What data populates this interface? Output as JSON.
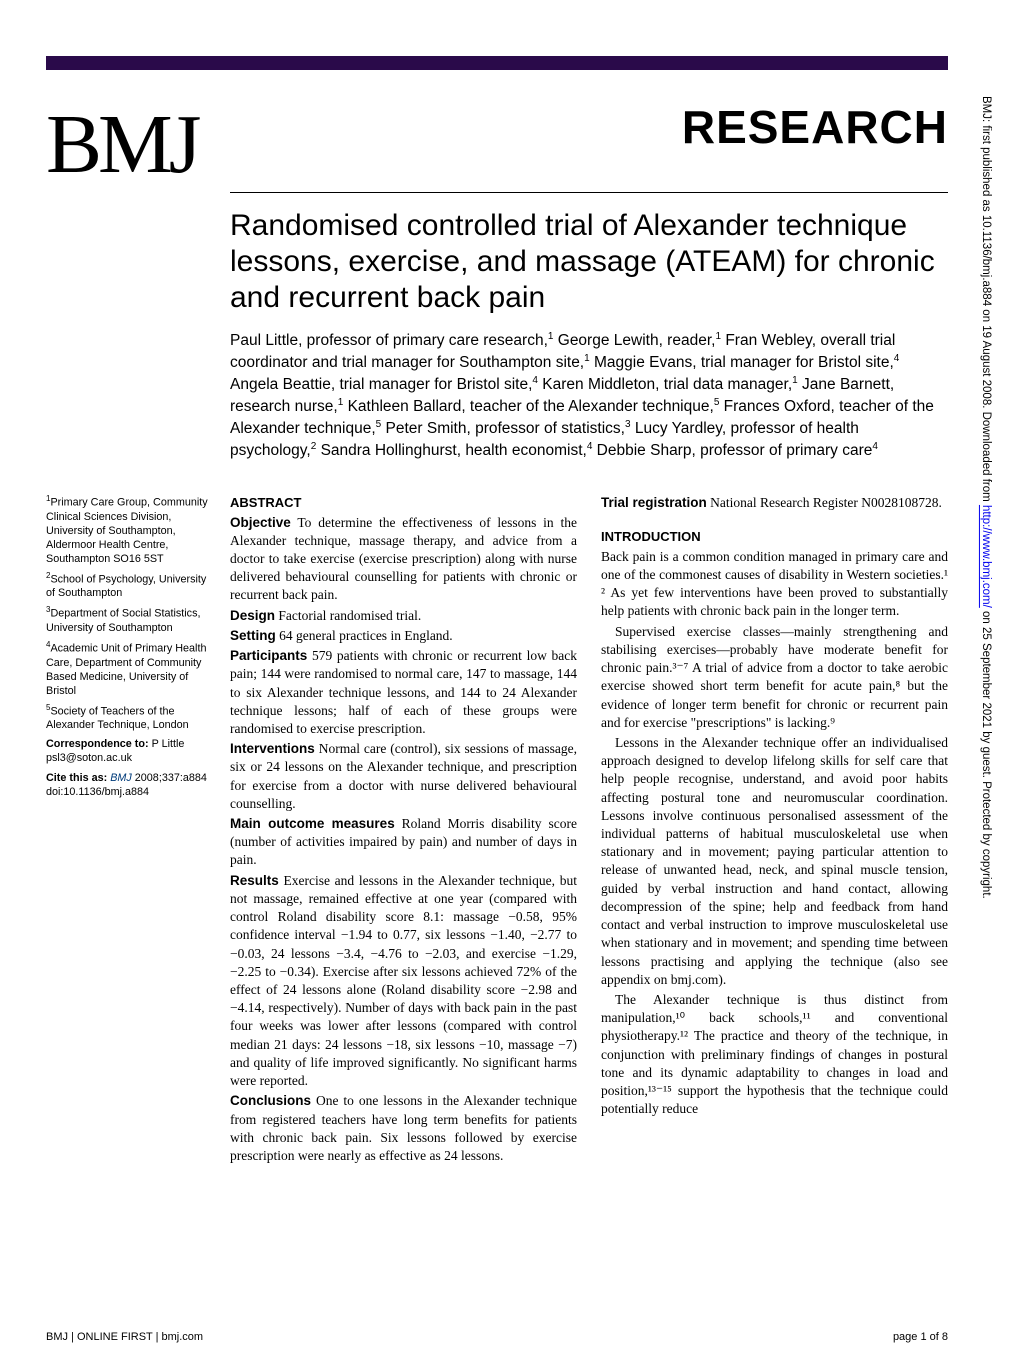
{
  "theme": {
    "top_bar_color": "#2a0a4a",
    "text_color": "#000000",
    "link_color": "#0000ee",
    "cite_color": "#003b7a",
    "background": "#ffffff"
  },
  "logo": "BMJ",
  "section_label": "RESEARCH",
  "side_caption_prefix": "BMJ: first published as 10.1136/bmj.a884 on 19 August 2008. Downloaded from ",
  "side_caption_url": "http://www.bmj.com/",
  "side_caption_suffix": " on 25 September 2021 by guest. Protected by copyright.",
  "title": "Randomised controlled trial of Alexander technique lessons, exercise, and massage (ATEAM) for chronic and recurrent back pain",
  "authors_html": "Paul Little, professor of primary care research,<sup>1</sup> George Lewith, reader,<sup>1</sup> Fran Webley, overall trial coordinator and trial manager for Southampton site,<sup>1</sup> Maggie Evans, trial manager for Bristol site,<sup>4</sup> Angela Beattie, trial manager for Bristol site,<sup>4</sup> Karen Middleton, trial data manager,<sup>1</sup> Jane Barnett, research nurse,<sup>1</sup> Kathleen Ballard, teacher of the Alexander technique,<sup>5</sup> Frances Oxford, teacher of the Alexander technique,<sup>5</sup> Peter Smith, professor of statistics,<sup>3</sup> Lucy Yardley, professor of health psychology,<sup>2</sup> Sandra Hollinghurst, health economist,<sup>4</sup> Debbie Sharp, professor of primary care<sup>4</sup>",
  "affiliations": {
    "a1": "Primary Care Group, Community Clinical Sciences Division, University of Southampton, Aldermoor Health Centre, Southampton SO16 5ST",
    "a2": "School of Psychology, University of Southampton",
    "a3": "Department of Social Statistics, University of Southampton",
    "a4": "Academic Unit of Primary Health Care, Department of Community Based Medicine, University of Bristol",
    "a5": "Society of Teachers of the Alexander Technique, London",
    "corr_label": "Correspondence to:",
    "corr_person": " P Little",
    "corr_email": "psl3@soton.ac.uk",
    "cite_label": "Cite this as: ",
    "cite_journal": "BMJ ",
    "cite_rest": "2008;337:a884",
    "doi": "doi:10.1136/bmj.a884"
  },
  "abstract": {
    "heading": "ABSTRACT",
    "objective_label": "Objective",
    "objective_text": " To determine the effectiveness of lessons in the Alexander technique, massage therapy, and advice from a doctor to take exercise (exercise prescription) along with nurse delivered behavioural counselling for patients with chronic or recurrent back pain.",
    "design_label": "Design",
    "design_text": " Factorial randomised trial.",
    "setting_label": "Setting",
    "setting_text": " 64 general practices in England.",
    "participants_label": "Participants",
    "participants_text": " 579 patients with chronic or recurrent low back pain; 144 were randomised to normal care, 147 to massage, 144 to six Alexander technique lessons, and 144 to 24 Alexander technique lessons; half of each of these groups were randomised to exercise prescription.",
    "interventions_label": "Interventions",
    "interventions_text": " Normal care (control), six sessions of massage, six or 24 lessons on the Alexander technique, and prescription for exercise from a doctor with nurse delivered behavioural counselling.",
    "outcomes_label": "Main outcome measures",
    "outcomes_text": " Roland Morris disability score (number of activities impaired by pain) and number of days in pain.",
    "results_label": "Results",
    "results_text": " Exercise and lessons in the Alexander technique, but not massage, remained effective at one year (compared with control Roland disability score 8.1: massage −0.58, 95% confidence interval −1.94 to 0.77, six lessons −1.40, −2.77 to −0.03, 24 lessons −3.4, −4.76 to −2.03, and exercise −1.29, −2.25 to −0.34). Exercise after six lessons achieved 72% of the effect of 24 lessons alone (Roland disability score −2.98 and −4.14, respectively). Number of days with back pain in the past four weeks was lower after lessons (compared with control median 21 days: 24 lessons −18, six lessons −10, massage −7) and quality of life improved significantly. No significant harms were reported.",
    "conclusions_label": "Conclusions",
    "conclusions_text": " One to one lessons in the Alexander technique from registered teachers have long term benefits for patients with chronic back pain. Six lessons followed by exercise prescription were nearly as effective as 24 lessons."
  },
  "right_col": {
    "trial_reg_label": "Trial registration",
    "trial_reg_text": " National Research Register N0028108728.",
    "intro_heading": "INTRODUCTION",
    "intro_p1": "Back pain is a common condition managed in primary care and one of the commonest causes of disability in Western societies.¹ ² As yet few interventions have been proved to substantially help patients with chronic back pain in the longer term.",
    "intro_p2": "Supervised exercise classes—mainly strengthening and stabilising exercises—probably have moderate benefit for chronic pain.³⁻⁷ A trial of advice from a doctor to take aerobic exercise showed short term benefit for acute pain,⁸ but the evidence of longer term benefit for chronic or recurrent pain and for exercise \"prescriptions\" is lacking.⁹",
    "intro_p3": "Lessons in the Alexander technique offer an individualised approach designed to develop lifelong skills for self care that help people recognise, understand, and avoid poor habits affecting postural tone and neuromuscular coordination. Lessons involve continuous personalised assessment of the individual patterns of habitual musculoskeletal use when stationary and in movement; paying particular attention to release of unwanted head, neck, and spinal muscle tension, guided by verbal instruction and hand contact, allowing decompression of the spine; help and feedback from hand contact and verbal instruction to improve musculoskeletal use when stationary and in movement; and spending time between lessons practising and applying the technique (also see appendix on bmj.com).",
    "intro_p4": "The Alexander technique is thus distinct from manipulation,¹⁰ back schools,¹¹ and conventional physiotherapy.¹² The practice and theory of the technique, in conjunction with preliminary findings of changes in postural tone and its dynamic adaptability to changes in load and position,¹³⁻¹⁵ support the hypothesis that the technique could potentially reduce"
  },
  "footer": {
    "left": "BMJ | ONLINE FIRST | bmj.com",
    "right": "page 1 of 8"
  }
}
